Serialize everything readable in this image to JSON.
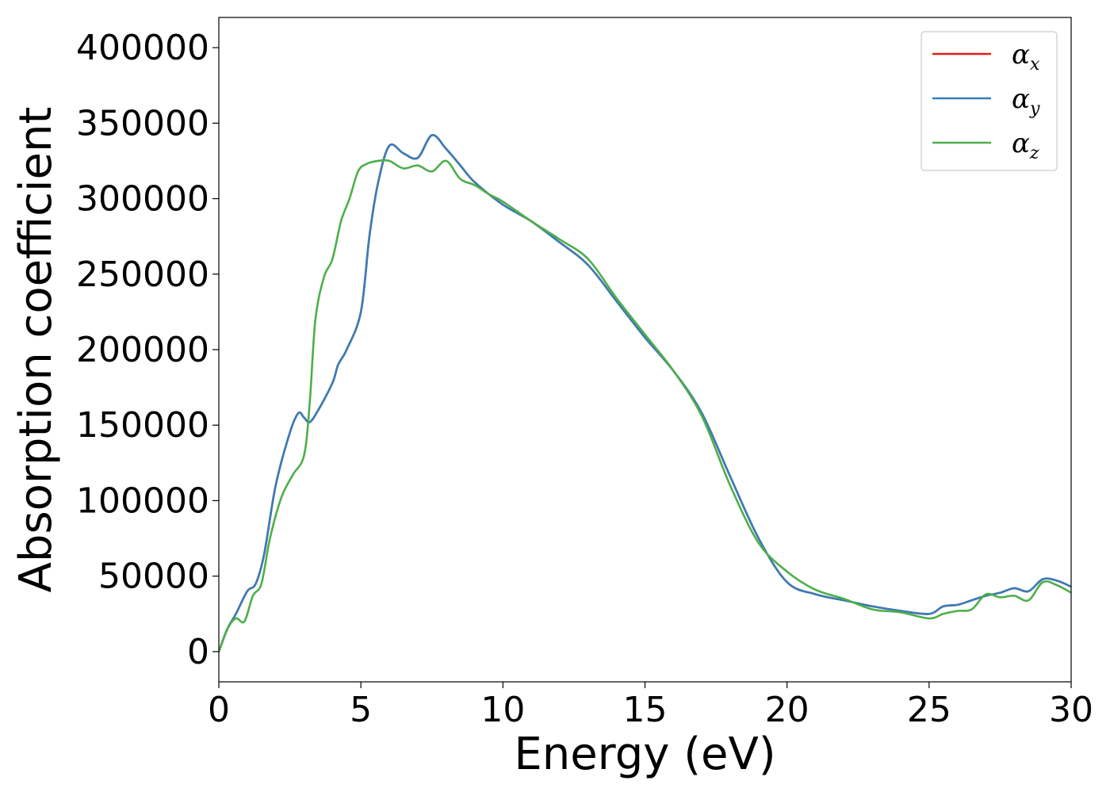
{
  "chart_data": {
    "type": "line",
    "title": "",
    "xlabel": "Energy (eV)",
    "ylabel": "Absorption coefficient",
    "xlim": [
      0,
      30
    ],
    "ylim": [
      -20000,
      420000
    ],
    "xticks": [
      "0",
      "5",
      "10",
      "15",
      "20",
      "25",
      "30"
    ],
    "yticks": [
      "0",
      "50000",
      "100000",
      "150000",
      "200000",
      "250000",
      "300000",
      "350000",
      "400000"
    ],
    "grid": false,
    "legend": {
      "position": "top-right",
      "entries": [
        {
          "symbol": "α",
          "sub": "x",
          "color": "#e41a1c"
        },
        {
          "symbol": "α",
          "sub": "y",
          "color": "#377eb8"
        },
        {
          "symbol": "α",
          "sub": "z",
          "color": "#4daf4a"
        }
      ]
    },
    "series": [
      {
        "name": "α_x",
        "color": "#e41a1c",
        "x": [
          0,
          0.3,
          0.6,
          1.0,
          1.3,
          1.6,
          2.0,
          2.5,
          2.8,
          3.0,
          3.2,
          3.5,
          4.0,
          4.2,
          4.5,
          5.0,
          5.3,
          5.6,
          6.0,
          6.5,
          7.0,
          7.5,
          8.0,
          8.5,
          9.0,
          10.0,
          11.0,
          12.0,
          13.0,
          14.0,
          15.0,
          16.0,
          17.0,
          18.0,
          19.0,
          20.0,
          21.0,
          22.0,
          23.0,
          24.0,
          25.0,
          25.5,
          26.0,
          26.5,
          27.0,
          27.5,
          28.0,
          28.5,
          29.0,
          29.5,
          30.0
        ],
        "y": [
          0,
          15000,
          25000,
          40000,
          45000,
          65000,
          110000,
          145000,
          158000,
          155000,
          152000,
          160000,
          178000,
          190000,
          200000,
          225000,
          275000,
          310000,
          335000,
          330000,
          327000,
          342000,
          333000,
          322000,
          311000,
          296000,
          285000,
          271000,
          256000,
          232000,
          208000,
          186000,
          158000,
          116000,
          75000,
          46000,
          38000,
          34000,
          30000,
          27000,
          25000,
          30000,
          31000,
          34000,
          37000,
          39000,
          42000,
          40000,
          48000,
          47000,
          43000
        ]
      },
      {
        "name": "α_y",
        "color": "#377eb8",
        "x": [
          0,
          0.3,
          0.6,
          1.0,
          1.3,
          1.6,
          2.0,
          2.5,
          2.8,
          3.0,
          3.2,
          3.5,
          4.0,
          4.2,
          4.5,
          5.0,
          5.3,
          5.6,
          6.0,
          6.5,
          7.0,
          7.5,
          8.0,
          8.5,
          9.0,
          10.0,
          11.0,
          12.0,
          13.0,
          14.0,
          15.0,
          16.0,
          17.0,
          18.0,
          19.0,
          20.0,
          21.0,
          22.0,
          23.0,
          24.0,
          25.0,
          25.5,
          26.0,
          26.5,
          27.0,
          27.5,
          28.0,
          28.5,
          29.0,
          29.5,
          30.0
        ],
        "y": [
          0,
          15000,
          25000,
          40000,
          45000,
          65000,
          110000,
          145000,
          158000,
          155000,
          152000,
          160000,
          178000,
          190000,
          200000,
          225000,
          275000,
          310000,
          335000,
          330000,
          327000,
          342000,
          333000,
          322000,
          311000,
          296000,
          285000,
          271000,
          256000,
          232000,
          208000,
          186000,
          158000,
          116000,
          75000,
          46000,
          38000,
          34000,
          30000,
          27000,
          25000,
          30000,
          31000,
          34000,
          37000,
          39000,
          42000,
          40000,
          48000,
          47000,
          43000
        ]
      },
      {
        "name": "α_z",
        "color": "#4daf4a",
        "x": [
          0,
          0.3,
          0.6,
          0.9,
          1.2,
          1.5,
          1.8,
          2.2,
          2.6,
          3.0,
          3.2,
          3.4,
          3.7,
          4.0,
          4.3,
          4.6,
          4.9,
          5.2,
          5.6,
          6.0,
          6.5,
          7.0,
          7.5,
          8.0,
          8.5,
          9.0,
          9.5,
          10.0,
          11.0,
          12.0,
          13.0,
          14.0,
          15.0,
          16.0,
          17.0,
          18.0,
          19.0,
          20.0,
          21.0,
          22.0,
          23.0,
          24.0,
          25.0,
          25.5,
          26.0,
          26.5,
          27.0,
          27.5,
          28.0,
          28.5,
          29.0,
          29.5,
          30.0
        ],
        "y": [
          0,
          15000,
          22000,
          20000,
          37000,
          45000,
          75000,
          102000,
          117000,
          130000,
          165000,
          220000,
          248000,
          260000,
          285000,
          300000,
          318000,
          323000,
          325000,
          325000,
          320000,
          322000,
          318000,
          325000,
          313000,
          309000,
          303000,
          298000,
          285000,
          273000,
          260000,
          234000,
          210000,
          186000,
          156000,
          110000,
          72000,
          53000,
          41000,
          35000,
          28000,
          26000,
          22000,
          25000,
          27000,
          28000,
          38000,
          36000,
          37000,
          34000,
          46000,
          44000,
          39000
        ]
      }
    ]
  }
}
